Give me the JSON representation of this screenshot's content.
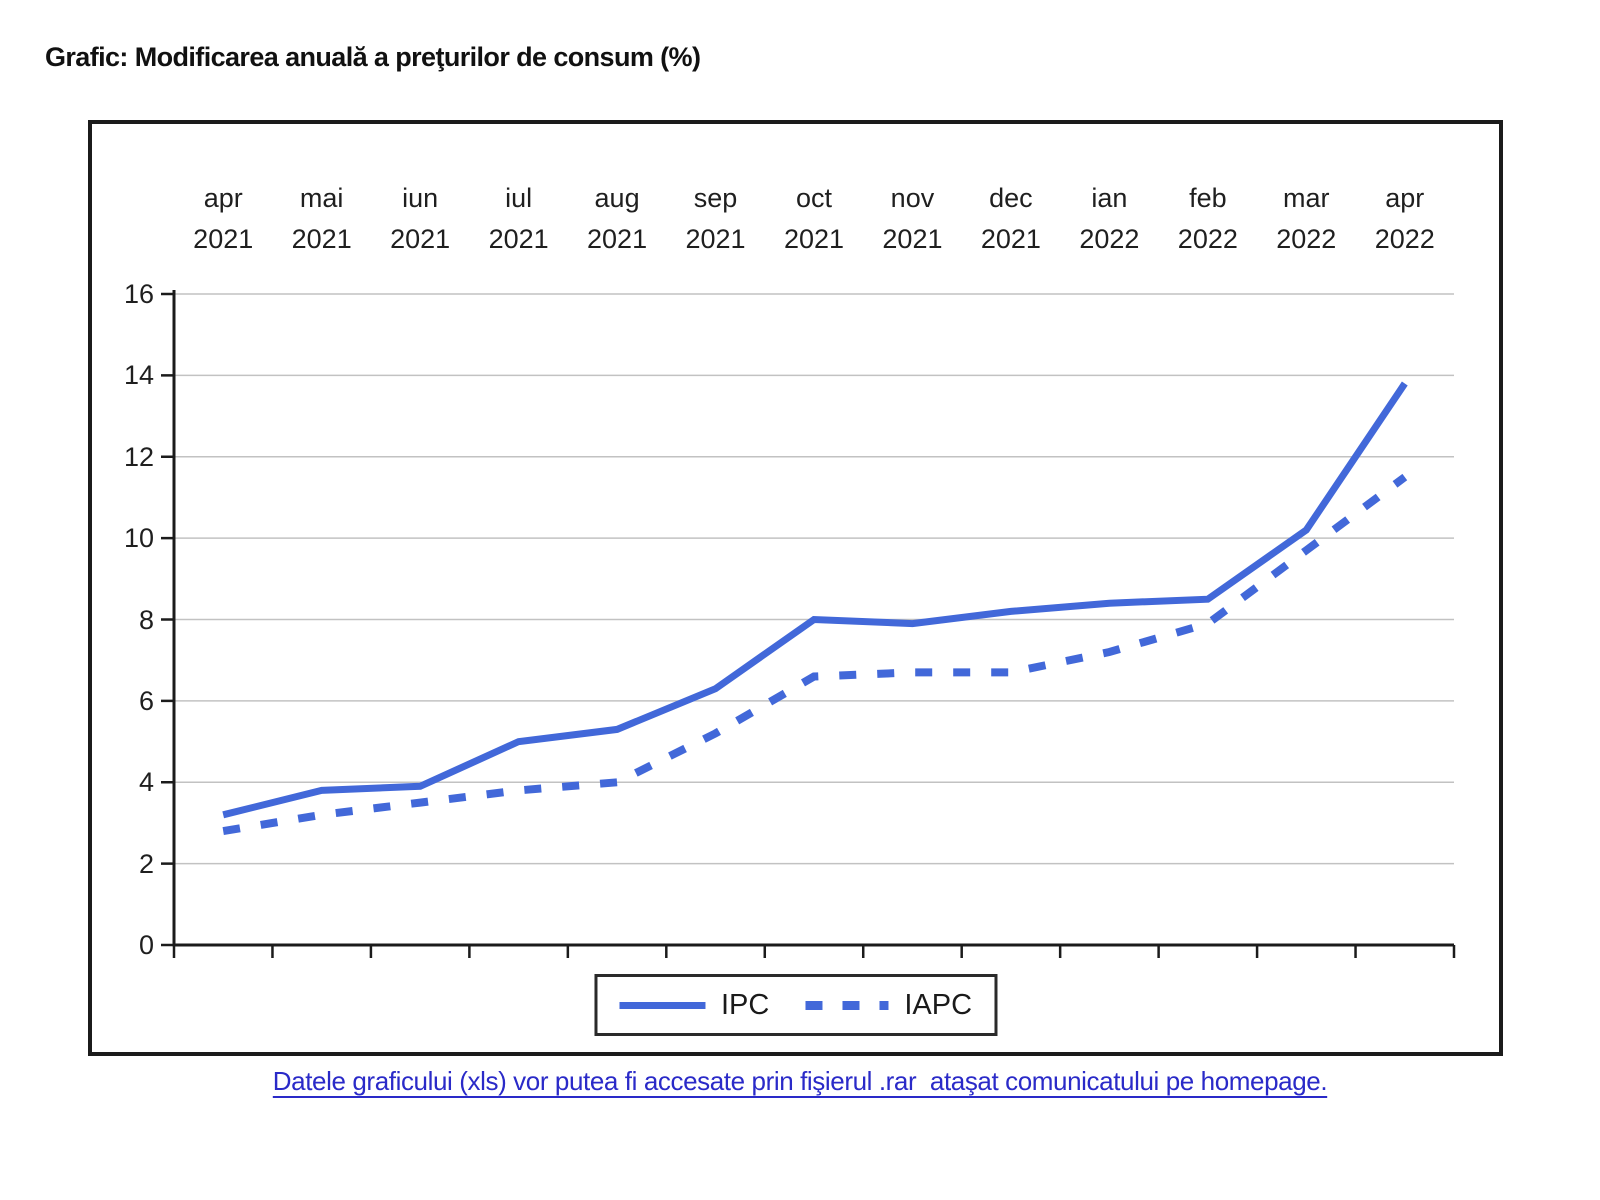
{
  "page": {
    "footer_link": "Datele graficului (xls) vor putea fi accesate prin fişierul .rar  ataşat comunicatului pe homepage."
  },
  "colors": {
    "series_blue": "#4268d9",
    "link_blue": "#2a2ac8",
    "gridline": "#c2c2c2",
    "axis": "#1b1b1b"
  },
  "chart_data": {
    "type": "line",
    "title": "Grafic: Modificarea anuală a preţurilor de consum (%)",
    "categories": [
      "apr 2021",
      "mai 2021",
      "iun 2021",
      "iul 2021",
      "aug 2021",
      "sep 2021",
      "oct 2021",
      "nov 2021",
      "dec 2021",
      "ian 2022",
      "feb 2022",
      "mar 2022",
      "apr 2022"
    ],
    "series": [
      {
        "name": "IPC",
        "style": "solid",
        "values": [
          3.2,
          3.8,
          3.9,
          5.0,
          5.3,
          6.3,
          8.0,
          7.9,
          8.2,
          8.4,
          8.5,
          10.2,
          13.8
        ]
      },
      {
        "name": "IAPC",
        "style": "dashed",
        "values": [
          2.8,
          3.2,
          3.5,
          3.8,
          4.0,
          5.2,
          6.6,
          6.7,
          6.7,
          7.2,
          7.9,
          9.7,
          11.5
        ]
      }
    ],
    "xlabel": "",
    "ylabel": "",
    "ylim": [
      0,
      16
    ],
    "yticks": [
      0,
      2,
      4,
      6,
      8,
      10,
      12,
      14,
      16
    ],
    "grid": true,
    "x_labels_position": "top",
    "legend_position": "bottom"
  }
}
